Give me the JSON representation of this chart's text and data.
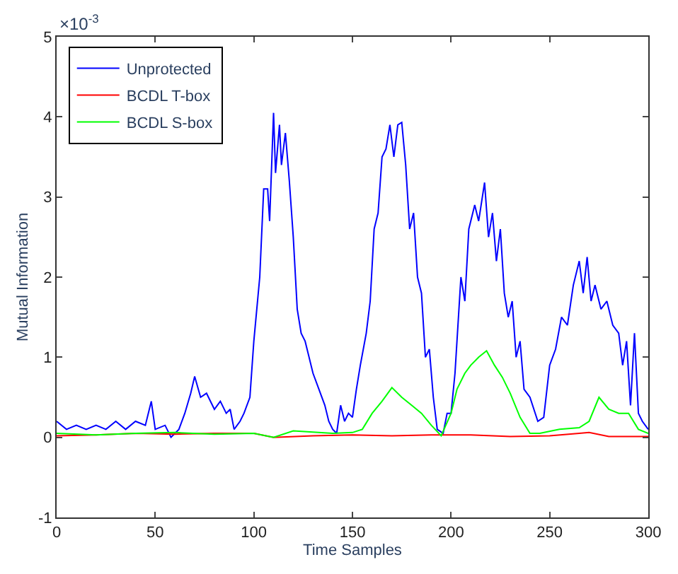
{
  "chart_data": {
    "type": "line",
    "xlabel": "Time Samples",
    "ylabel": "Mutual Information",
    "annotations": [
      "×10$^{-3}$"
    ],
    "xlim": [
      0,
      300
    ],
    "xticks": [
      0,
      50,
      100,
      150,
      200,
      250,
      300
    ],
    "ylim": [
      -1,
      5
    ],
    "yticks": [
      -1,
      0,
      1,
      2,
      3,
      4,
      5
    ],
    "legend": "top left",
    "marker": "none",
    "line_style": "solid",
    "series": [
      {
        "name": "Unprotected",
        "color": "#0000ff",
        "x": [
          0,
          5,
          10,
          15,
          20,
          25,
          30,
          35,
          40,
          45,
          48,
          50,
          55,
          58,
          62,
          65,
          68,
          70,
          73,
          76,
          80,
          83,
          86,
          88,
          90,
          93,
          95,
          98,
          100,
          103,
          105,
          107,
          108,
          110,
          111,
          113,
          114,
          116,
          118,
          120,
          122,
          124,
          126,
          128,
          130,
          133,
          136,
          138,
          140,
          142,
          144,
          146,
          148,
          150,
          152,
          154,
          157,
          159,
          161,
          163,
          165,
          167,
          169,
          171,
          173,
          175,
          177,
          179,
          181,
          183,
          185,
          187,
          189,
          191,
          193,
          196,
          198,
          200,
          202,
          205,
          207,
          209,
          212,
          214,
          217,
          219,
          221,
          223,
          225,
          227,
          229,
          231,
          233,
          235,
          237,
          240,
          244,
          247,
          250,
          253,
          256,
          259,
          262,
          265,
          267,
          269,
          271,
          273,
          276,
          279,
          282,
          285,
          287,
          289,
          291,
          293,
          295,
          297,
          300
        ],
        "values": [
          0.2,
          0.1,
          0.15,
          0.1,
          0.15,
          0.1,
          0.2,
          0.1,
          0.2,
          0.15,
          0.45,
          0.1,
          0.15,
          0.0,
          0.1,
          0.3,
          0.55,
          0.76,
          0.5,
          0.55,
          0.35,
          0.45,
          0.3,
          0.35,
          0.1,
          0.2,
          0.3,
          0.5,
          1.2,
          2.0,
          3.1,
          3.1,
          2.7,
          4.05,
          3.3,
          3.9,
          3.4,
          3.8,
          3.2,
          2.5,
          1.6,
          1.3,
          1.2,
          1.0,
          0.8,
          0.6,
          0.4,
          0.2,
          0.1,
          0.05,
          0.4,
          0.2,
          0.3,
          0.25,
          0.6,
          0.9,
          1.3,
          1.7,
          2.6,
          2.8,
          3.5,
          3.6,
          3.9,
          3.5,
          3.9,
          3.93,
          3.4,
          2.6,
          2.8,
          2.0,
          1.8,
          1.0,
          1.1,
          0.5,
          0.1,
          0.05,
          0.3,
          0.3,
          0.8,
          2.0,
          1.7,
          2.6,
          2.9,
          2.7,
          3.18,
          2.5,
          2.8,
          2.2,
          2.6,
          1.8,
          1.5,
          1.7,
          1.0,
          1.2,
          0.6,
          0.5,
          0.2,
          0.25,
          0.9,
          1.1,
          1.5,
          1.4,
          1.9,
          2.2,
          1.8,
          2.25,
          1.7,
          1.9,
          1.6,
          1.7,
          1.4,
          1.3,
          0.9,
          1.2,
          0.4,
          1.3,
          0.3,
          0.2,
          0.1
        ]
      },
      {
        "name": "BCDL T-box",
        "color": "#ff0000",
        "x": [
          0,
          20,
          40,
          60,
          80,
          100,
          110,
          130,
          150,
          170,
          190,
          210,
          230,
          250,
          265,
          270,
          280,
          300
        ],
        "values": [
          0.02,
          0.03,
          0.05,
          0.04,
          0.05,
          0.05,
          0.0,
          0.02,
          0.03,
          0.02,
          0.03,
          0.03,
          0.01,
          0.02,
          0.05,
          0.06,
          0.01,
          0.01
        ]
      },
      {
        "name": "BCDL S-box",
        "color": "#00ff00",
        "x": [
          0,
          20,
          40,
          60,
          80,
          100,
          110,
          120,
          140,
          150,
          155,
          160,
          165,
          170,
          175,
          180,
          185,
          190,
          195,
          200,
          203,
          207,
          210,
          214,
          218,
          222,
          226,
          230,
          235,
          240,
          245,
          255,
          265,
          270,
          275,
          280,
          285,
          290,
          295,
          300
        ],
        "values": [
          0.05,
          0.03,
          0.05,
          0.06,
          0.04,
          0.05,
          0.0,
          0.08,
          0.05,
          0.06,
          0.1,
          0.3,
          0.45,
          0.62,
          0.5,
          0.4,
          0.3,
          0.15,
          0.02,
          0.3,
          0.6,
          0.8,
          0.9,
          1.0,
          1.08,
          0.9,
          0.75,
          0.55,
          0.25,
          0.05,
          0.05,
          0.1,
          0.12,
          0.2,
          0.5,
          0.35,
          0.3,
          0.3,
          0.1,
          0.05
        ]
      }
    ]
  }
}
